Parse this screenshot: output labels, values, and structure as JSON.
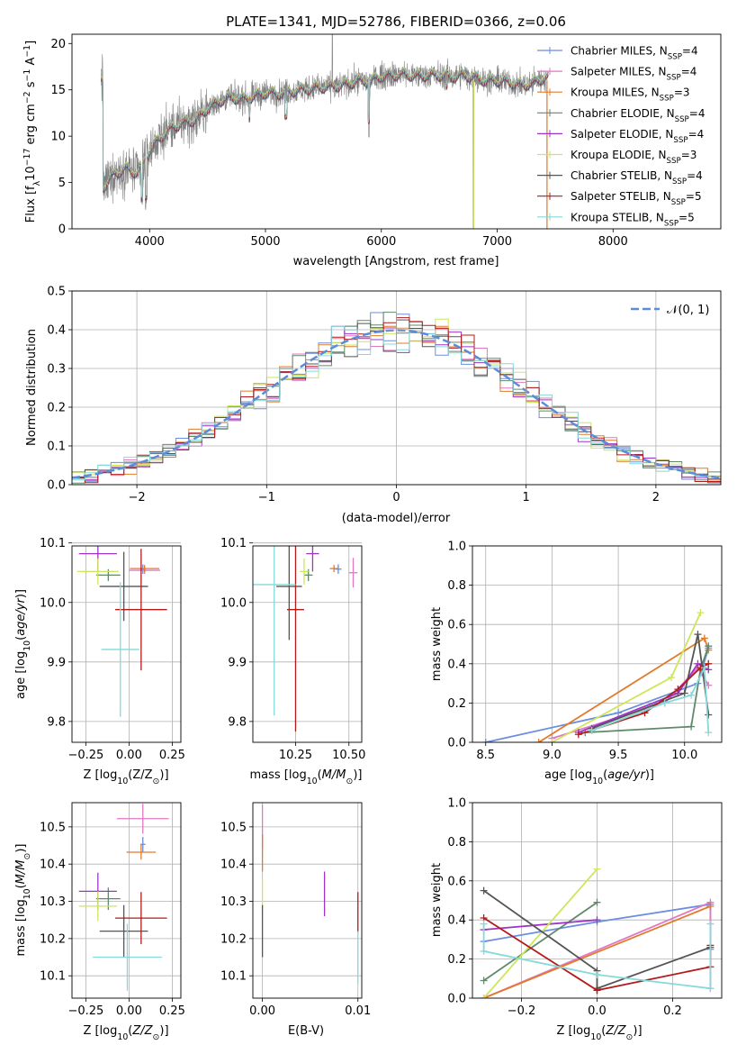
{
  "title": "PLATE=1341, MJD=52786, FIBERID=0366, z=0.06",
  "colors": {
    "chabrier_miles": "#6b8ee0",
    "salpeter_miles": "#e377c2",
    "kroupa_miles": "#e07b2c",
    "chabrier_elodie": "#5f8a6a",
    "salpeter_elodie": "#9f35c8",
    "kroupa_elodie": "#cde65a",
    "chabrier_stelib": "#555555",
    "salpeter_stelib": "#b31b1b",
    "kroupa_stelib": "#86d9d9",
    "spectrum": "#808080",
    "normal_line": "#5b8bd9",
    "grid": "#b0b0b0"
  },
  "chart_data": [
    {
      "id": "spectrum",
      "type": "line",
      "title": "PLATE=1341, MJD=52786, FIBERID=0366, z=0.06",
      "xlabel": "wavelength [Angstrom, rest frame]",
      "ylabel": "Flux [f",
      "ylabel_sub": "λ",
      "ylabel_rest": "10",
      "ylabel_exp1": "−17",
      "ylabel_units": " erg cm",
      "ylabel_exp2": "−2",
      "ylabel_s": " s",
      "ylabel_exp3": "−1",
      "ylabel_A": " A",
      "ylabel_exp4": "−1",
      "ylabel_end": "]",
      "xlim": [
        3330,
        8930
      ],
      "ylim": [
        0,
        21
      ],
      "xticks": [
        "4000",
        "5000",
        "6000",
        "7000",
        "8000"
      ],
      "yticks": [
        "0",
        "5",
        "10",
        "15",
        "20"
      ],
      "xtick_values": [
        4000,
        5000,
        6000,
        7000,
        8000
      ],
      "ytick_values": [
        0,
        5,
        10,
        15,
        20
      ],
      "data_range": [
        3580,
        7440
      ],
      "envelope": {
        "x": [
          3600,
          3700,
          3800,
          3900,
          4000,
          4100,
          4200,
          4300,
          4400,
          4500,
          4600,
          4700,
          4800,
          4900,
          5000,
          5100,
          5200,
          5300,
          5400,
          5500,
          5600,
          5700,
          5800,
          5900,
          6000,
          6100,
          6200,
          6300,
          6400,
          6500,
          6600,
          6700,
          6800,
          6900,
          7000,
          7100,
          7200,
          7300,
          7400
        ],
        "y": [
          4.5,
          6.0,
          6.5,
          6.0,
          8.5,
          10.0,
          11.0,
          11.5,
          11.8,
          13.0,
          13.8,
          14.2,
          14.0,
          14.3,
          14.7,
          14.6,
          14.8,
          15.0,
          15.2,
          15.3,
          15.4,
          15.6,
          16.0,
          15.9,
          16.5,
          16.6,
          16.7,
          16.5,
          16.6,
          16.6,
          16.4,
          16.6,
          16.4,
          16.0,
          16.0,
          15.9,
          15.5,
          15.7,
          16.3
        ]
      },
      "legend": [
        {
          "label": "Chabrier MILES, N",
          "sub": "SSP",
          "tail": "=4",
          "color": "#6b8ee0"
        },
        {
          "label": "Salpeter MILES, N",
          "sub": "SSP",
          "tail": "=4",
          "color": "#e377c2"
        },
        {
          "label": "Kroupa MILES, N",
          "sub": "SSP",
          "tail": "=3",
          "color": "#e07b2c"
        },
        {
          "label": "Chabrier ELODIE, N",
          "sub": "SSP",
          "tail": "=4",
          "color": "#5f8a6a"
        },
        {
          "label": "Salpeter ELODIE, N",
          "sub": "SSP",
          "tail": "=4",
          "color": "#9f35c8"
        },
        {
          "label": "Kroupa ELODIE, N",
          "sub": "SSP",
          "tail": "=3",
          "color": "#cde65a"
        },
        {
          "label": "Chabrier STELIB, N",
          "sub": "SSP",
          "tail": "=4",
          "color": "#555555"
        },
        {
          "label": "Salpeter STELIB, N",
          "sub": "SSP",
          "tail": "=5",
          "color": "#b31b1b"
        },
        {
          "label": "Kroupa STELIB, N",
          "sub": "SSP",
          "tail": "=5",
          "color": "#86d9d9"
        }
      ]
    },
    {
      "id": "residuals",
      "type": "histogram",
      "xlabel": "(data-model)/error",
      "ylabel": "Normed distribution",
      "xlim": [
        -2.5,
        2.5
      ],
      "ylim": [
        0,
        0.5
      ],
      "xticks": [
        "−2",
        "−1",
        "0",
        "1",
        "2"
      ],
      "yticks": [
        "0.0",
        "0.1",
        "0.2",
        "0.3",
        "0.4",
        "0.5"
      ],
      "xtick_values": [
        -2,
        -1,
        0,
        1,
        2
      ],
      "ytick_values": [
        0,
        0.1,
        0.2,
        0.3,
        0.4,
        0.5
      ],
      "bin_width": 0.1,
      "legend_label": "𝒩(0, 1)",
      "normal_curve": {
        "mean": 0,
        "sigma": 1
      }
    },
    {
      "id": "age_vs_Z",
      "type": "errorbar",
      "xlabel": "Z [log",
      "xlabel_sub": "10",
      "xlabel_rest": "(Z/Z",
      "xlabel_sub2": "⊙",
      "xlabel_end": ")]",
      "ylabel": "age  [log",
      "ylabel_sub": "10",
      "ylabel_rest": "(age/yr)]",
      "xlim": [
        -0.33,
        0.3
      ],
      "ylim": [
        9.765,
        10.095
      ],
      "xticks": [
        "−0.25",
        "0.00",
        "0.25"
      ],
      "xtick_values": [
        -0.25,
        0,
        0.25
      ],
      "yticks": [
        "9.8",
        "9.9",
        "10.0",
        "10.1"
      ],
      "ytick_values": [
        9.8,
        9.9,
        10.0,
        10.1
      ],
      "points": [
        {
          "x": 0.08,
          "xerr": 0.015,
          "y": 10.056,
          "yerr": 0.008,
          "color": "#6b8ee0"
        },
        {
          "x": 0.09,
          "xerr": 0.09,
          "y": 10.054,
          "yerr": 0.006,
          "color": "#e377c2"
        },
        {
          "x": 0.09,
          "xerr": 0.085,
          "y": 10.057,
          "yerr": 0.006,
          "color": "#e07b2c"
        },
        {
          "x": -0.12,
          "xerr": 0.07,
          "y": 10.046,
          "yerr": 0.01,
          "color": "#5f8a6a"
        },
        {
          "x": -0.18,
          "xerr": 0.11,
          "y": 10.082,
          "yerr": 0.03,
          "color": "#9f35c8"
        },
        {
          "x": -0.18,
          "xerr": 0.12,
          "y": 10.052,
          "yerr": 0.022,
          "color": "#cde65a"
        },
        {
          "x": -0.03,
          "xerr": 0.14,
          "y": 10.027,
          "yerr": 0.058,
          "color": "#555555"
        },
        {
          "x": 0.07,
          "xerr": 0.15,
          "y": 9.988,
          "yerr": 0.102,
          "color": "#b31b1b"
        },
        {
          "x": -0.05,
          "xerr": 0.11,
          "y": 9.921,
          "yerr": 0.113,
          "color": "#86d9d9"
        }
      ]
    },
    {
      "id": "age_vs_mass",
      "type": "errorbar",
      "xlabel": "mass [log",
      "xlabel_sub": "10",
      "xlabel_rest": "(M/M",
      "xlabel_sub2": "⊙",
      "xlabel_end": ")]",
      "xlim": [
        10.05,
        10.56
      ],
      "ylim": [
        9.765,
        10.095
      ],
      "xticks": [
        "10.25",
        "10.50"
      ],
      "xtick_values": [
        10.25,
        10.5
      ],
      "yticks": [
        "9.8",
        "9.9",
        "10.0",
        "10.1"
      ],
      "ytick_values": [
        9.8,
        9.9,
        10.0,
        10.1
      ],
      "points": [
        {
          "x": 10.45,
          "xerr": 0.015,
          "y": 10.056,
          "yerr": 0.008,
          "color": "#6b8ee0"
        },
        {
          "x": 10.52,
          "xerr": 0.02,
          "y": 10.05,
          "yerr": 0.025,
          "color": "#e377c2"
        },
        {
          "x": 10.43,
          "xerr": 0.02,
          "y": 10.057,
          "yerr": 0.006,
          "color": "#e07b2c"
        },
        {
          "x": 10.31,
          "xerr": 0.02,
          "y": 10.046,
          "yerr": 0.01,
          "color": "#5f8a6a"
        },
        {
          "x": 10.33,
          "xerr": 0.03,
          "y": 10.082,
          "yerr": 0.03,
          "color": "#9f35c8"
        },
        {
          "x": 10.29,
          "xerr": 0.02,
          "y": 10.052,
          "yerr": 0.022,
          "color": "#cde65a"
        },
        {
          "x": 10.22,
          "xerr": 0.06,
          "y": 10.027,
          "yerr": 0.09,
          "color": "#555555"
        },
        {
          "x": 10.25,
          "xerr": 0.04,
          "y": 9.988,
          "yerr": 0.205,
          "color": "#b31b1b"
        },
        {
          "x": 10.15,
          "xerr": 0.1,
          "y": 10.03,
          "yerr": 0.22,
          "color": "#86d9d9"
        }
      ]
    },
    {
      "id": "weight_vs_age",
      "type": "line",
      "xlabel": "age  [log",
      "xlabel_sub": "10",
      "xlabel_rest": "(age/yr)]",
      "ylabel": "mass weight",
      "xlim": [
        8.4,
        10.28
      ],
      "ylim": [
        0,
        1
      ],
      "xticks": [
        "8.5",
        "9.0",
        "9.5",
        "10.0"
      ],
      "xtick_values": [
        8.5,
        9.0,
        9.5,
        10.0
      ],
      "yticks": [
        "0.0",
        "0.2",
        "0.4",
        "0.6",
        "0.8",
        "1.0"
      ],
      "ytick_values": [
        0,
        0.2,
        0.4,
        0.6,
        0.8,
        1.0
      ],
      "series": [
        {
          "color": "#6b8ee0",
          "x": [
            8.5,
            9.5,
            10.1,
            10.18
          ],
          "y": [
            0.0,
            0.15,
            0.3,
            0.48
          ]
        },
        {
          "color": "#e377c2",
          "x": [
            9.0,
            9.85,
            10.1,
            10.18
          ],
          "y": [
            0.02,
            0.2,
            0.38,
            0.29
          ]
        },
        {
          "color": "#e07b2c",
          "x": [
            8.9,
            10.15,
            10.18
          ],
          "y": [
            0.0,
            0.53,
            0.47
          ]
        },
        {
          "color": "#5f8a6a",
          "x": [
            9.25,
            10.05,
            10.12,
            10.18
          ],
          "y": [
            0.05,
            0.08,
            0.37,
            0.49
          ]
        },
        {
          "color": "#9f35c8",
          "x": [
            9.2,
            9.95,
            10.1,
            10.18
          ],
          "y": [
            0.05,
            0.25,
            0.4,
            0.37
          ]
        },
        {
          "color": "#cde65a",
          "x": [
            9.0,
            9.9,
            10.12
          ],
          "y": [
            0.0,
            0.33,
            0.66
          ]
        },
        {
          "color": "#555555",
          "x": [
            9.3,
            10.0,
            10.1,
            10.18
          ],
          "y": [
            0.07,
            0.25,
            0.55,
            0.14
          ]
        },
        {
          "color": "#b31b1b",
          "x": [
            9.2,
            9.7,
            9.95,
            10.12,
            10.18
          ],
          "y": [
            0.04,
            0.15,
            0.27,
            0.38,
            0.4
          ]
        },
        {
          "color": "#86d9d9",
          "x": [
            9.3,
            9.85,
            10.05,
            10.15,
            10.18
          ],
          "y": [
            0.06,
            0.2,
            0.24,
            0.38,
            0.05
          ]
        }
      ]
    },
    {
      "id": "mass_vs_Z",
      "type": "errorbar",
      "xlabel": "Z [log",
      "xlabel_sub": "10",
      "xlabel_rest": "(Z/Z",
      "xlabel_sub2": "⊙",
      "xlabel_end": ")]",
      "ylabel": "mass [log",
      "ylabel_sub": "10",
      "ylabel_rest": "(M/M",
      "ylabel_sub2": "⊙",
      "ylabel_end": ")]",
      "xlim": [
        -0.33,
        0.3
      ],
      "ylim": [
        10.04,
        10.565
      ],
      "xticks": [
        "−0.25",
        "0.00",
        "0.25"
      ],
      "xtick_values": [
        -0.25,
        0,
        0.25
      ],
      "yticks": [
        "10.1",
        "10.2",
        "10.3",
        "10.4",
        "10.5"
      ],
      "ytick_values": [
        10.1,
        10.2,
        10.3,
        10.4,
        10.5
      ],
      "points": [
        {
          "x": 0.08,
          "xerr": 0.015,
          "y": 10.453,
          "yerr": 0.02,
          "color": "#6b8ee0"
        },
        {
          "x": 0.08,
          "xerr": 0.15,
          "y": 10.522,
          "yerr": 0.04,
          "color": "#e377c2"
        },
        {
          "x": 0.07,
          "xerr": 0.085,
          "y": 10.432,
          "yerr": 0.02,
          "color": "#e07b2c"
        },
        {
          "x": -0.12,
          "xerr": 0.07,
          "y": 10.307,
          "yerr": 0.03,
          "color": "#5f8a6a"
        },
        {
          "x": -0.18,
          "xerr": 0.11,
          "y": 10.327,
          "yerr": 0.05,
          "color": "#9f35c8"
        },
        {
          "x": -0.18,
          "xerr": 0.11,
          "y": 10.287,
          "yerr": 0.04,
          "color": "#cde65a"
        },
        {
          "x": -0.03,
          "xerr": 0.14,
          "y": 10.22,
          "yerr": 0.07,
          "color": "#555555"
        },
        {
          "x": 0.07,
          "xerr": 0.15,
          "y": 10.255,
          "yerr": 0.07,
          "color": "#b31b1b"
        },
        {
          "x": -0.01,
          "xerr": 0.2,
          "y": 10.15,
          "yerr": 0.09,
          "color": "#86d9d9"
        }
      ]
    },
    {
      "id": "mass_vs_ebv",
      "type": "errorbar",
      "xlabel": "E(B-V)",
      "xlim": [
        -0.001,
        0.0104
      ],
      "ylim": [
        10.04,
        10.565
      ],
      "xticks": [
        "0.00",
        "0.01"
      ],
      "xtick_values": [
        0,
        0.01
      ],
      "yticks": [
        "10.1",
        "10.2",
        "10.3",
        "10.4",
        "10.5"
      ],
      "ytick_values": [
        10.1,
        10.2,
        10.3,
        10.4,
        10.5
      ],
      "points": [
        {
          "x": 0.0,
          "xerr": 0,
          "y": 10.5,
          "yerr": 0.06,
          "color": "#e377c2"
        },
        {
          "x": 0.0,
          "xerr": 0,
          "y": 10.43,
          "yerr": 0.05,
          "color": "#e07b2c"
        },
        {
          "x": 0.0,
          "xerr": 0,
          "y": 10.32,
          "yerr": 0.04,
          "color": "#cde65a"
        },
        {
          "x": 0.0,
          "xerr": 0,
          "y": 10.22,
          "yerr": 0.07,
          "color": "#555555"
        },
        {
          "x": 0.0065,
          "xerr": 0,
          "y": 10.32,
          "yerr": 0.06,
          "color": "#9f35c8"
        },
        {
          "x": 0.01,
          "xerr": 0,
          "y": 10.27,
          "yerr": 0.055,
          "color": "#b31b1b"
        },
        {
          "x": 0.01,
          "xerr": 0,
          "y": 10.15,
          "yerr": 0.07,
          "color": "#86d9d9"
        }
      ]
    },
    {
      "id": "weight_vs_Z",
      "type": "line",
      "xlabel": "Z [log",
      "xlabel_sub": "10",
      "xlabel_rest": "(Z/Z",
      "xlabel_sub2": "⊙",
      "xlabel_end": ")]",
      "ylabel": "mass weight",
      "xlim": [
        -0.33,
        0.33
      ],
      "ylim": [
        0,
        1
      ],
      "xticks": [
        "−0.2",
        "0.0",
        "0.2"
      ],
      "xtick_values": [
        -0.2,
        0,
        0.2
      ],
      "yticks": [
        "0.0",
        "0.2",
        "0.4",
        "0.6",
        "0.8",
        "1.0"
      ],
      "ytick_values": [
        0,
        0.2,
        0.4,
        0.6,
        0.8,
        1.0
      ],
      "series": [
        {
          "color": "#6b8ee0",
          "x": [
            -0.3,
            0.0,
            0.3,
            0.3
          ],
          "y": [
            0.29,
            0.39,
            0.48,
            0.25
          ]
        },
        {
          "color": "#e377c2",
          "x": [
            -0.3,
            0.3,
            0.3
          ],
          "y": [
            0.0,
            0.49,
            0.05
          ]
        },
        {
          "color": "#e07b2c",
          "x": [
            -0.3,
            0.3
          ],
          "y": [
            0.0,
            0.47
          ]
        },
        {
          "color": "#5f8a6a",
          "x": [
            -0.3,
            0.0
          ],
          "y": [
            0.09,
            0.49
          ]
        },
        {
          "color": "#9f35c8",
          "x": [
            -0.3,
            0.0
          ],
          "y": [
            0.35,
            0.4
          ]
        },
        {
          "color": "#cde65a",
          "x": [
            -0.3,
            0.0
          ],
          "y": [
            0.0,
            0.66
          ]
        },
        {
          "color": "#555555",
          "x": [
            -0.3,
            0.0,
            0.0,
            0.3
          ],
          "y": [
            0.55,
            0.14,
            0.05,
            0.26
          ]
        },
        {
          "color": "#b31b1b",
          "x": [
            -0.3,
            0.0,
            0.0,
            0.3,
            0.3
          ],
          "y": [
            0.41,
            0.04,
            0.04,
            0.16,
            0.27
          ]
        },
        {
          "color": "#86d9d9",
          "x": [
            -0.3,
            -0.3,
            0.0,
            0.3,
            0.3
          ],
          "y": [
            0.38,
            0.24,
            0.12,
            0.05,
            0.38
          ]
        }
      ]
    }
  ]
}
